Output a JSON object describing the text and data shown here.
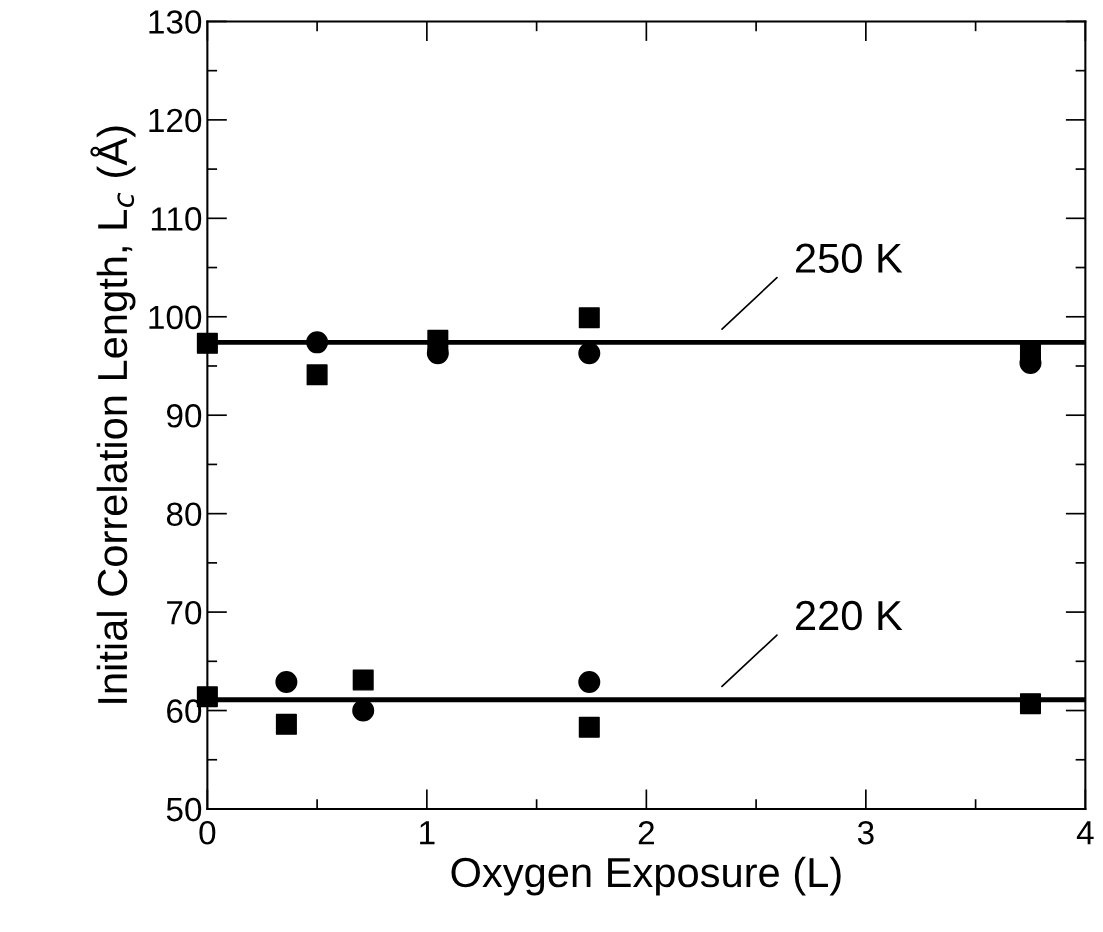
{
  "chart_data": {
    "type": "scatter",
    "xlabel": "Oxygen Exposure (L)",
    "ylabel": "Initial Correlation Length, L$_{c}$ (Å)",
    "xlim": [
      0,
      4
    ],
    "xticks": [
      0,
      1,
      2,
      3,
      4
    ],
    "ylim": [
      50,
      130
    ],
    "yticks": [
      50,
      60,
      70,
      80,
      90,
      100,
      110,
      120,
      130
    ],
    "grid": false,
    "legend": false,
    "series": [
      {
        "marker": "square",
        "color": "#000000",
        "x": [
          0,
          0.5,
          1.05,
          1.74,
          3.75,
          0,
          0.36,
          0.71,
          1.74,
          3.75
        ],
        "values": [
          97.3,
          94.1,
          97.6,
          99.9,
          96.3,
          61.4,
          58.6,
          63.1,
          58.3,
          60.7
        ]
      },
      {
        "marker": "circle",
        "color": "#000000",
        "x": [
          0.5,
          1.05,
          1.74,
          3.75,
          0.36,
          0.71,
          1.74
        ],
        "values": [
          97.4,
          96.3,
          96.3,
          95.3,
          62.9,
          60.0,
          62.9
        ]
      },
      {
        "type": "line",
        "marker": "none",
        "line_style": "solid",
        "color": "#000000",
        "x": [
          0,
          4
        ],
        "values": [
          97.4,
          97.4
        ]
      },
      {
        "type": "line",
        "marker": "none",
        "line_style": "solid",
        "color": "#000000",
        "x": [
          0,
          4
        ],
        "values": [
          61.1,
          61.1
        ]
      }
    ],
    "annotations": [
      {
        "text": "250 K",
        "x": 2.28,
        "y": 97.4
      },
      {
        "text": "220 K",
        "x": 2.28,
        "y": 61.1
      }
    ]
  }
}
